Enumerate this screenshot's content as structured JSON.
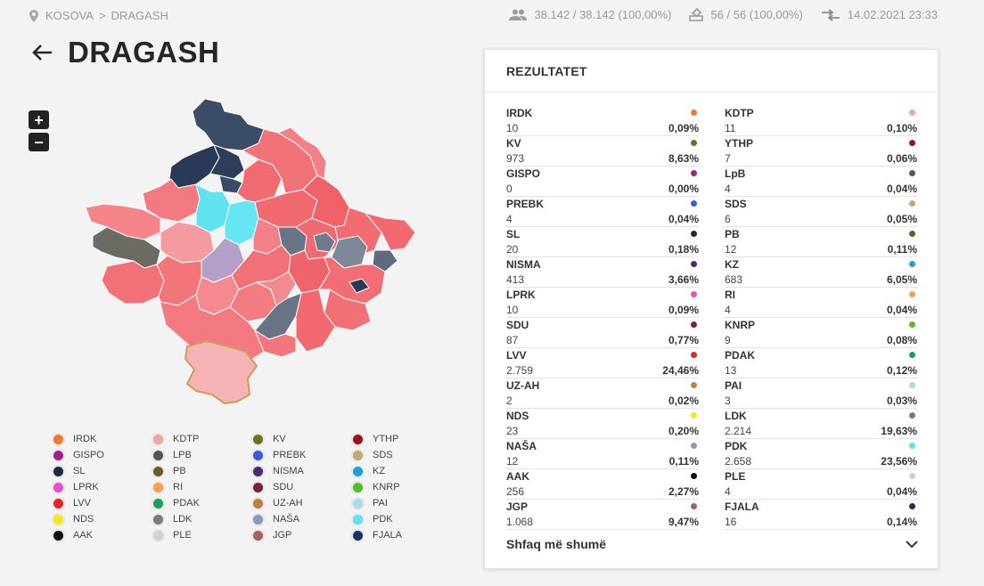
{
  "breadcrumb": {
    "root": "KOSOVA",
    "separator": ">",
    "current": "DRAGASH"
  },
  "stats": {
    "voters": "38.142 / 38.142 (100,00%)",
    "stations": "56 / 56 (100,00%)",
    "updated": "14.02.2021 23:33"
  },
  "page": {
    "title": "DRAGASH"
  },
  "zoom": {
    "in": "+",
    "out": "−"
  },
  "colors": {
    "highlight_border": "#c8a05a",
    "selected_fill": "#f6b3b6"
  },
  "legend": [
    {
      "label": "IRDK",
      "color": "#f07a2a"
    },
    {
      "label": "KDTP",
      "color": "#f4a0a4"
    },
    {
      "label": "KV",
      "color": "#6b7320"
    },
    {
      "label": "YTHP",
      "color": "#9a1020"
    },
    {
      "label": "GISPO",
      "color": "#a0208a"
    },
    {
      "label": "LPB",
      "color": "#555555"
    },
    {
      "label": "PREBK",
      "color": "#3a5ad8"
    },
    {
      "label": "SDS",
      "color": "#c2a878"
    },
    {
      "label": "SL",
      "color": "#1a2a40"
    },
    {
      "label": "PB",
      "color": "#6a5a28"
    },
    {
      "label": "NISMA",
      "color": "#4a2a70"
    },
    {
      "label": "KZ",
      "color": "#1aa0d8"
    },
    {
      "label": "LPRK",
      "color": "#e050d0"
    },
    {
      "label": "RI",
      "color": "#f4a050"
    },
    {
      "label": "SDU",
      "color": "#7a2038"
    },
    {
      "label": "KNRP",
      "color": "#50c020"
    },
    {
      "label": "LVV",
      "color": "#e02828"
    },
    {
      "label": "PDAK",
      "color": "#18a058"
    },
    {
      "label": "UZ-AH",
      "color": "#c08040"
    },
    {
      "label": "PAI",
      "color": "#a8dcec"
    },
    {
      "label": "NDS",
      "color": "#f8e818"
    },
    {
      "label": "LDK",
      "color": "#7a7a7a"
    },
    {
      "label": "NAŠA",
      "color": "#8898b8"
    },
    {
      "label": "PDK",
      "color": "#60e0f0"
    },
    {
      "label": "AAK",
      "color": "#111111"
    },
    {
      "label": "PLE",
      "color": "#d0d0d0"
    },
    {
      "label": "JGP",
      "color": "#a86060"
    },
    {
      "label": "FJALA",
      "color": "#1a3060"
    }
  ],
  "results": {
    "title": "REZULTATET",
    "more_label": "Shfaq më shumë",
    "parties": [
      {
        "name": "IRDK",
        "votes": "10",
        "pct": "0,09%",
        "color": "#f07a2a"
      },
      {
        "name": "KDTP",
        "votes": "11",
        "pct": "0,10%",
        "color": "#f4a0a4"
      },
      {
        "name": "KV",
        "votes": "973",
        "pct": "8,63%",
        "color": "#6b7320"
      },
      {
        "name": "YTHP",
        "votes": "7",
        "pct": "0,06%",
        "color": "#9a1020"
      },
      {
        "name": "GISPO",
        "votes": "0",
        "pct": "0,00%",
        "color": "#a0208a"
      },
      {
        "name": "LpB",
        "votes": "4",
        "pct": "0,04%",
        "color": "#555555"
      },
      {
        "name": "PREBK",
        "votes": "4",
        "pct": "0,04%",
        "color": "#3a5ad8"
      },
      {
        "name": "SDS",
        "votes": "6",
        "pct": "0,05%",
        "color": "#c2a878"
      },
      {
        "name": "SL",
        "votes": "20",
        "pct": "0,18%",
        "color": "#1a2a40"
      },
      {
        "name": "PB",
        "votes": "12",
        "pct": "0,11%",
        "color": "#6a5a28"
      },
      {
        "name": "NISMA",
        "votes": "413",
        "pct": "3,66%",
        "color": "#4a2a70"
      },
      {
        "name": "KZ",
        "votes": "683",
        "pct": "6,05%",
        "color": "#1aa0d8"
      },
      {
        "name": "LPRK",
        "votes": "10",
        "pct": "0,09%",
        "color": "#e050d0"
      },
      {
        "name": "RI",
        "votes": "4",
        "pct": "0,04%",
        "color": "#f4a050"
      },
      {
        "name": "SDU",
        "votes": "87",
        "pct": "0,77%",
        "color": "#7a2038"
      },
      {
        "name": "KNRP",
        "votes": "9",
        "pct": "0,08%",
        "color": "#50c020"
      },
      {
        "name": "LVV",
        "votes": "2.759",
        "pct": "24,46%",
        "color": "#e02828"
      },
      {
        "name": "PDAK",
        "votes": "13",
        "pct": "0,12%",
        "color": "#18a058"
      },
      {
        "name": "UZ-AH",
        "votes": "2",
        "pct": "0,02%",
        "color": "#c08040"
      },
      {
        "name": "PAI",
        "votes": "3",
        "pct": "0,03%",
        "color": "#a8dcec"
      },
      {
        "name": "NDS",
        "votes": "23",
        "pct": "0,20%",
        "color": "#f8e818"
      },
      {
        "name": "LDK",
        "votes": "2.214",
        "pct": "19,63%",
        "color": "#7a7a7a"
      },
      {
        "name": "NAŠA",
        "votes": "12",
        "pct": "0,11%",
        "color": "#8898b8"
      },
      {
        "name": "PDK",
        "votes": "2.658",
        "pct": "23,56%",
        "color": "#60e0f0"
      },
      {
        "name": "AAK",
        "votes": "256",
        "pct": "2,27%",
        "color": "#111111"
      },
      {
        "name": "PLE",
        "votes": "4",
        "pct": "0,04%",
        "color": "#d0d0d0"
      },
      {
        "name": "JGP",
        "votes": "1.068",
        "pct": "9,47%",
        "color": "#a86060"
      },
      {
        "name": "FJALA",
        "votes": "16",
        "pct": "0,14%",
        "color": "#1a3060"
      }
    ]
  }
}
